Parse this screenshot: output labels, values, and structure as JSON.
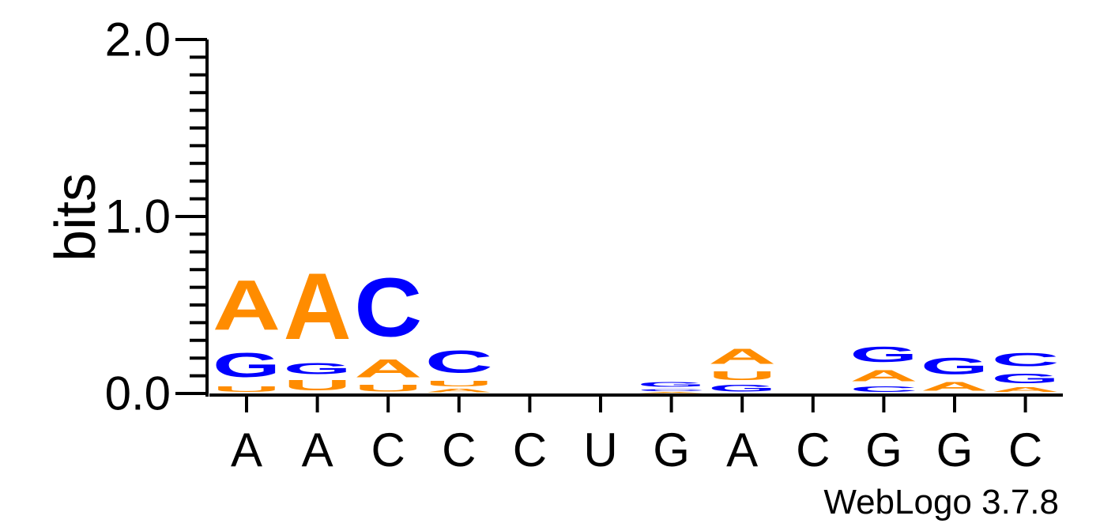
{
  "chart_data": {
    "type": "sequence-logo",
    "ylabel": "bits",
    "ylim": [
      0,
      2
    ],
    "yticks": [
      {
        "value": 0,
        "label": "0.0"
      },
      {
        "value": 1,
        "label": "1.0"
      },
      {
        "value": 2,
        "label": "2.0"
      }
    ],
    "positions": [
      "A",
      "A",
      "C",
      "C",
      "C",
      "U",
      "G",
      "A",
      "C",
      "G",
      "G",
      "C"
    ],
    "colors": {
      "A": "#ff8c00",
      "U": "#ff8c00",
      "G": "#0000ff",
      "C": "#0000ff"
    },
    "stacks": [
      [
        {
          "letter": "U",
          "bits": 0.05
        },
        {
          "letter": "G",
          "bits": 0.22
        },
        {
          "letter": "A",
          "bits": 0.45
        }
      ],
      [
        {
          "letter": "U",
          "bits": 0.09
        },
        {
          "letter": "G",
          "bits": 0.1
        },
        {
          "letter": "A",
          "bits": 0.6
        }
      ],
      [
        {
          "letter": "U",
          "bits": 0.06
        },
        {
          "letter": "A",
          "bits": 0.16
        },
        {
          "letter": "C",
          "bits": 0.53
        }
      ],
      [
        {
          "letter": "A",
          "bits": 0.03
        },
        {
          "letter": "U",
          "bits": 0.05
        },
        {
          "letter": "C",
          "bits": 0.2
        }
      ],
      [],
      [],
      [
        {
          "letter": "A",
          "bits": 0.01
        },
        {
          "letter": "C",
          "bits": 0.02
        },
        {
          "letter": "G",
          "bits": 0.04
        }
      ],
      [
        {
          "letter": "G",
          "bits": 0.06
        },
        {
          "letter": "U",
          "bits": 0.08
        },
        {
          "letter": "A",
          "bits": 0.14
        }
      ],
      [],
      [
        {
          "letter": "C",
          "bits": 0.05
        },
        {
          "letter": "A",
          "bits": 0.1
        },
        {
          "letter": "G",
          "bits": 0.14
        }
      ],
      [
        {
          "letter": "A",
          "bits": 0.08
        },
        {
          "letter": "G",
          "bits": 0.15
        }
      ],
      [
        {
          "letter": "A",
          "bits": 0.04
        },
        {
          "letter": "G",
          "bits": 0.09
        },
        {
          "letter": "C",
          "bits": 0.12
        }
      ]
    ]
  },
  "footer": {
    "credit": "WebLogo 3.7.8"
  }
}
